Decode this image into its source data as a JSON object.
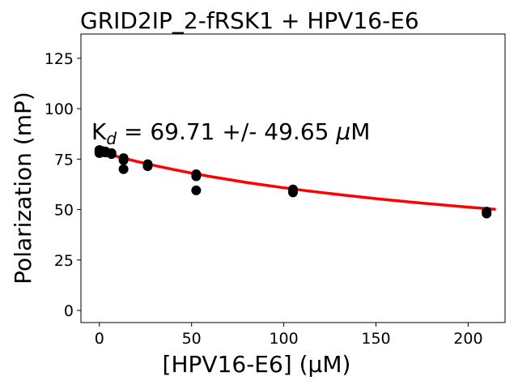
{
  "chart_data": {
    "type": "scatter",
    "title": "GRID2IP_2-fRSK1 + HPV16-E6",
    "xlabel": "[HPV16-E6] (μM)",
    "ylabel": "Polarization (mP)",
    "xlim": [
      -10,
      220
    ],
    "ylim": [
      -6,
      137
    ],
    "xticks": [
      0,
      50,
      100,
      150,
      200
    ],
    "yticks": [
      0,
      25,
      50,
      75,
      100,
      125
    ],
    "grid": false,
    "annotation": {
      "prefix": "K",
      "subscript": "d",
      "text": " = 69.71 +/- 49.65 ",
      "mu": "μ",
      "unit": "M"
    },
    "series": [
      {
        "kind": "points",
        "color": "#000000",
        "x": [
          0,
          0,
          0,
          1.64,
          1.64,
          3.28,
          3.28,
          6.56,
          6.56,
          13.1,
          13.1,
          13.1,
          26.2,
          26.2,
          52.5,
          52.5,
          52.5,
          105,
          105,
          210,
          210
        ],
        "y": [
          79.5,
          78.5,
          78,
          79,
          78.5,
          78.8,
          78.3,
          78,
          77.5,
          75.5,
          74.5,
          70,
          72.5,
          71.5,
          67.5,
          66.5,
          59.5,
          60,
          58.5,
          49,
          48
        ]
      },
      {
        "kind": "fit",
        "color": "#ff0000",
        "x": [
          0,
          5,
          10,
          20,
          30,
          40,
          50,
          60,
          70,
          80,
          90,
          100,
          110,
          120,
          130,
          140,
          150,
          160,
          170,
          180,
          190,
          200,
          210,
          215
        ],
        "y": [
          78.9,
          77.5,
          76.2,
          73.9,
          71.8,
          69.9,
          68.1,
          66.4,
          64.9,
          63.4,
          62.1,
          60.8,
          59.6,
          58.5,
          57.4,
          56.4,
          55.4,
          54.5,
          53.6,
          52.8,
          52.0,
          51.2,
          50.5,
          50.1
        ]
      }
    ]
  }
}
